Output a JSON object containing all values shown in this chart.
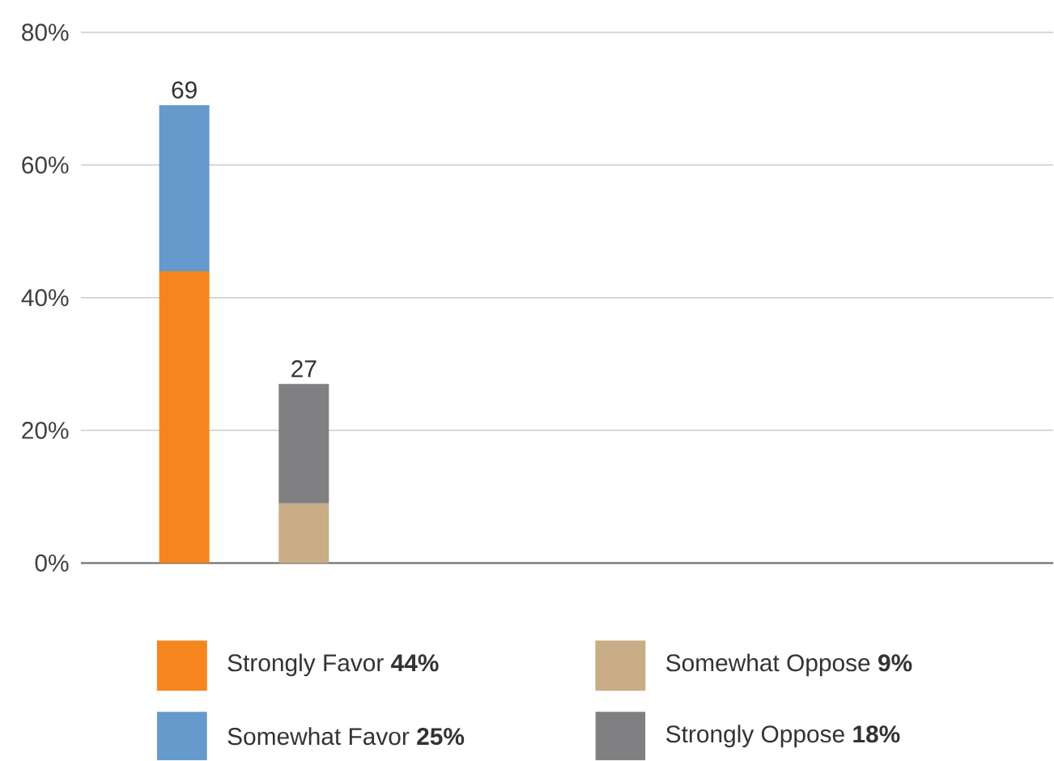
{
  "chart_data": {
    "type": "bar",
    "stacked": true,
    "categories": [
      null,
      null,
      null,
      null,
      null,
      null,
      null,
      null
    ],
    "series": [
      {
        "name": "Strongly Favor **44%**",
        "color": "#f5861f",
        "values": [
          44,
          null,
          null,
          null,
          null,
          null,
          null,
          null
        ]
      },
      {
        "name": "Somewhat Favor **25%**",
        "color": "#6699cc",
        "values": [
          25,
          null,
          null,
          null,
          null,
          null,
          null,
          null
        ]
      },
      {
        "name": "Somewhat Oppose **9%**",
        "color": "#c8ad86",
        "values": [
          null,
          9,
          null,
          null,
          null,
          null,
          null,
          null
        ]
      },
      {
        "name": "Strongly Oppose **18%**",
        "color": "#808083",
        "values": [
          null,
          18,
          null,
          null,
          null,
          null,
          null,
          null
        ]
      }
    ],
    "totals": [
      "69",
      "27",
      null,
      null,
      null,
      null,
      null,
      null
    ],
    "ylim": [
      0,
      80
    ],
    "yticks": [
      {
        "value": 0,
        "label": "0%"
      },
      {
        "value": 20,
        "label": "20%"
      },
      {
        "value": 40,
        "label": "40%"
      },
      {
        "value": 60,
        "label": "60%"
      },
      {
        "value": 80,
        "label": "80%"
      }
    ],
    "grid": "y",
    "legend": "bottom"
  }
}
